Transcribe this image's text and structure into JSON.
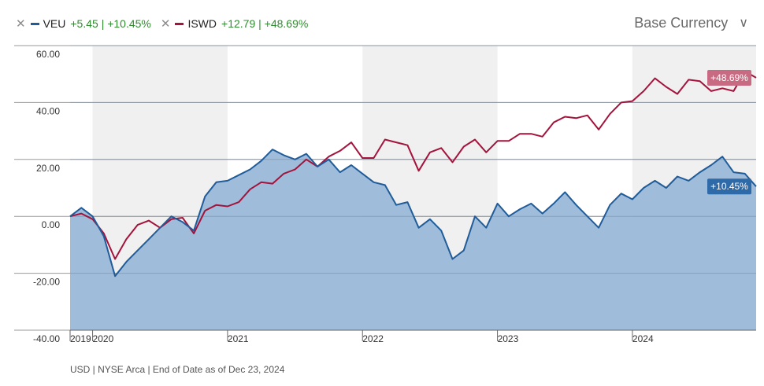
{
  "legend": [
    {
      "remove_icon": "close-icon",
      "ticker": "VEU",
      "change": "+5.45 | +10.45%",
      "color": "#1f5c99"
    },
    {
      "remove_icon": "close-icon",
      "ticker": "ISWD",
      "change": "+12.79 | +48.69%",
      "color": "#a3133c"
    }
  ],
  "base_currency": {
    "label": "Base Currency",
    "icon": "chevron-down-icon"
  },
  "footer": "USD | NYSE Arca | End of Date as of Dec 23, 2024",
  "chart_data": {
    "type": "line",
    "title": "",
    "xlabel": "",
    "ylabel": "",
    "ylim": [
      -40,
      60
    ],
    "yticks": [
      "60.00",
      "40.00",
      "20.00",
      "0.00",
      "-20.00",
      "-40.00"
    ],
    "xlabels": [
      "2019",
      "2020",
      "2021",
      "2022",
      "2023",
      "2024"
    ],
    "x_start": "2019-11",
    "x_end": "2024-12",
    "grid": true,
    "series": [
      {
        "name": "VEU",
        "color": "#1f5c99",
        "fill": "#9ab8d8",
        "end_label": "+10.45%",
        "values": [
          0,
          3,
          0,
          -7,
          -21,
          -16,
          -12,
          -8,
          -4,
          0,
          -2,
          -5,
          7,
          12,
          12.5,
          14.5,
          16.5,
          19.5,
          23.5,
          21.5,
          20,
          22,
          17.5,
          20,
          15.5,
          18,
          15,
          12,
          11,
          4,
          5,
          -4,
          -1,
          -5,
          -15,
          -12,
          0,
          -4,
          4.5,
          0,
          2.5,
          4.5,
          1,
          4.5,
          8.5,
          4,
          0,
          -4,
          4,
          8,
          6,
          10,
          12.5,
          10,
          14,
          12.5,
          15.5,
          18,
          21,
          15.5,
          15,
          10.5
        ]
      },
      {
        "name": "ISWD",
        "color": "#a3133c",
        "end_label": "+48.69%",
        "values": [
          0,
          1,
          -1,
          -6,
          -15,
          -8,
          -3,
          -1.5,
          -4,
          -1,
          -0.5,
          -6,
          2,
          4,
          3.5,
          5,
          9.5,
          12,
          11.5,
          15,
          16.5,
          20,
          17.5,
          21,
          23,
          26,
          20.5,
          20.5,
          27,
          26,
          25,
          16,
          22.5,
          24,
          19,
          24.5,
          27,
          22.5,
          26.5,
          26.5,
          29,
          29,
          28,
          33,
          35,
          34.5,
          35.5,
          30.5,
          36,
          40,
          40.5,
          44,
          48.5,
          45.5,
          43,
          48,
          47.5,
          44,
          45,
          44,
          51,
          48.69
        ]
      }
    ]
  }
}
